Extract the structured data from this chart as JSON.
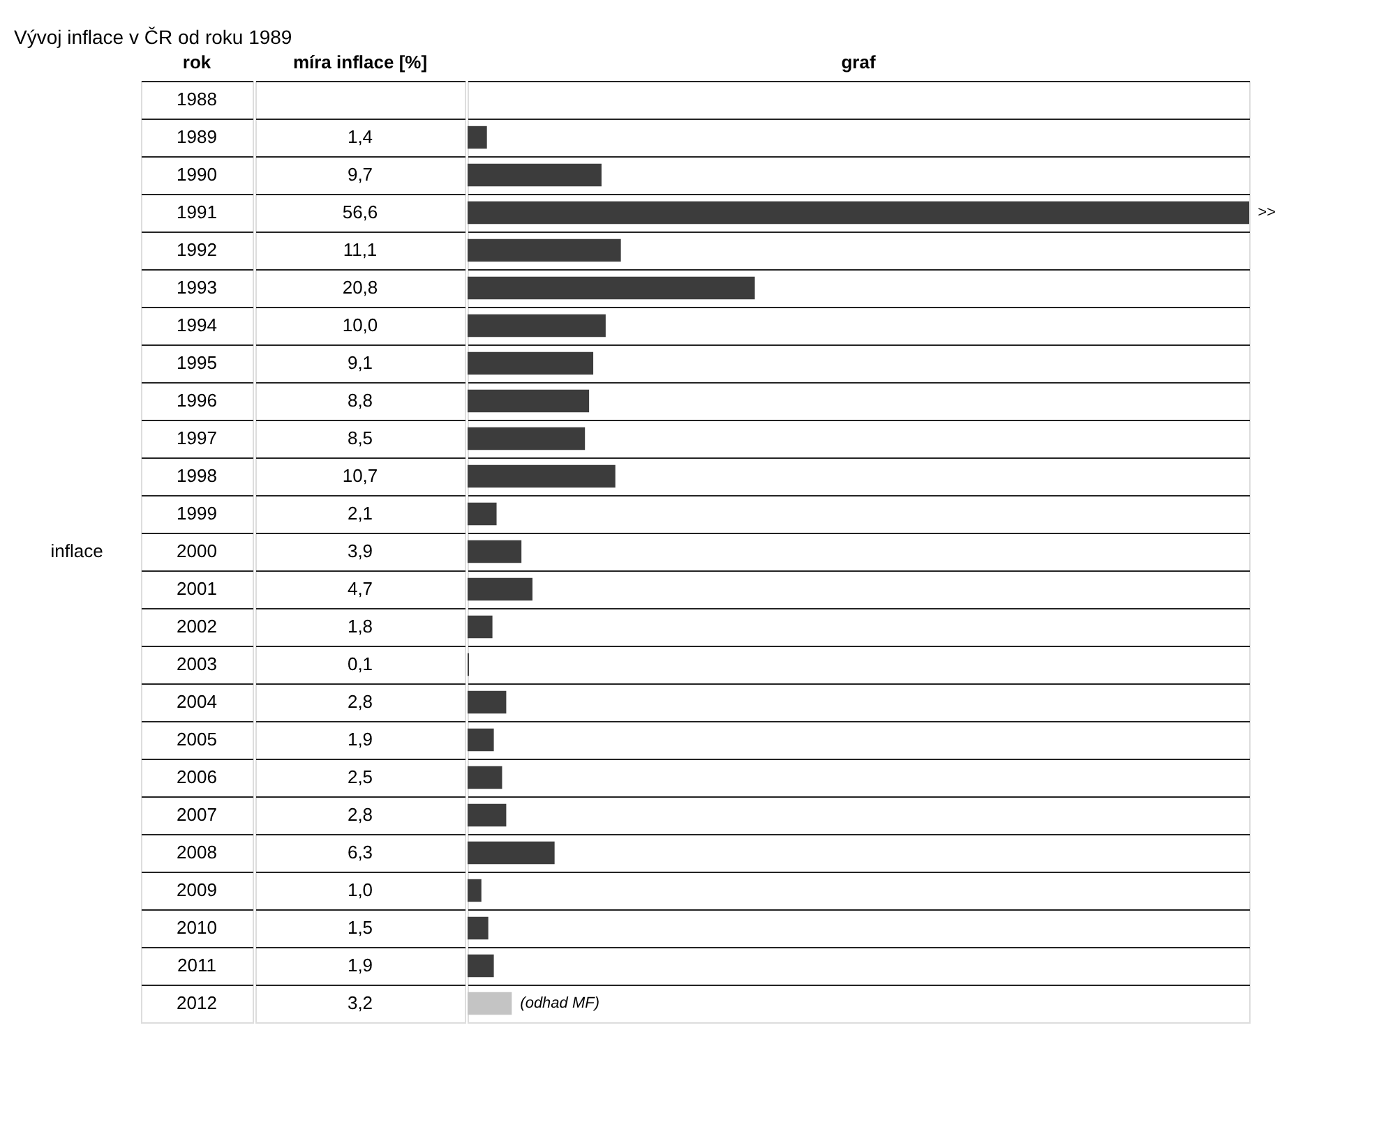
{
  "chart_data": {
    "type": "bar",
    "orientation": "horizontal",
    "title": "Vývoj inflace v ČR od roku 1989",
    "ylabel": "inflace",
    "xlabel": "graf",
    "grid": "y",
    "categories": [
      "1988",
      "1989",
      "1990",
      "1991",
      "1992",
      "1993",
      "1994",
      "1995",
      "1996",
      "1997",
      "1998",
      "1999",
      "2000",
      "2001",
      "2002",
      "2003",
      "2004",
      "2005",
      "2006",
      "2007",
      "2008",
      "2009",
      "2010",
      "2011",
      "2012"
    ],
    "values": [
      null,
      1.4,
      9.7,
      56.6,
      11.1,
      20.8,
      10.0,
      9.1,
      8.8,
      8.5,
      10.7,
      2.1,
      3.9,
      4.7,
      1.8,
      0.1,
      2.8,
      1.9,
      2.5,
      2.8,
      6.3,
      1.0,
      1.5,
      1.9,
      3.2
    ],
    "value_labels": [
      null,
      "1,4",
      "9,7",
      "56,6",
      "11,1",
      "20,8",
      "10,0",
      "9,1",
      "8,8",
      "8,5",
      "10,7",
      "2,1",
      "3,9",
      "4,7",
      "1,8",
      "0,1",
      "2,8",
      "1,9",
      "2,5",
      "2,8",
      "6,3",
      "1,0",
      "1,5",
      "1,9",
      "3,2"
    ],
    "colors": [
      "#3c3c3c",
      "#3c3c3c",
      "#3c3c3c",
      "#3c3c3c",
      "#3c3c3c",
      "#3c3c3c",
      "#3c3c3c",
      "#3c3c3c",
      "#3c3c3c",
      "#3c3c3c",
      "#3c3c3c",
      "#3c3c3c",
      "#3c3c3c",
      "#3c3c3c",
      "#3c3c3c",
      "#3c3c3c",
      "#3c3c3c",
      "#3c3c3c",
      "#3c3c3c",
      "#3c3c3c",
      "#3c3c3c",
      "#3c3c3c",
      "#3c3c3c",
      "#3c3c3c",
      "#c4c4c4"
    ],
    "annotations": [
      "rok",
      "míra inflace [%]",
      {
        "text": ">>",
        "x": 56.6,
        "y": "1991"
      },
      {
        "text": "(odhad MF)",
        "x": 3.2,
        "y": "2012"
      }
    ]
  }
}
